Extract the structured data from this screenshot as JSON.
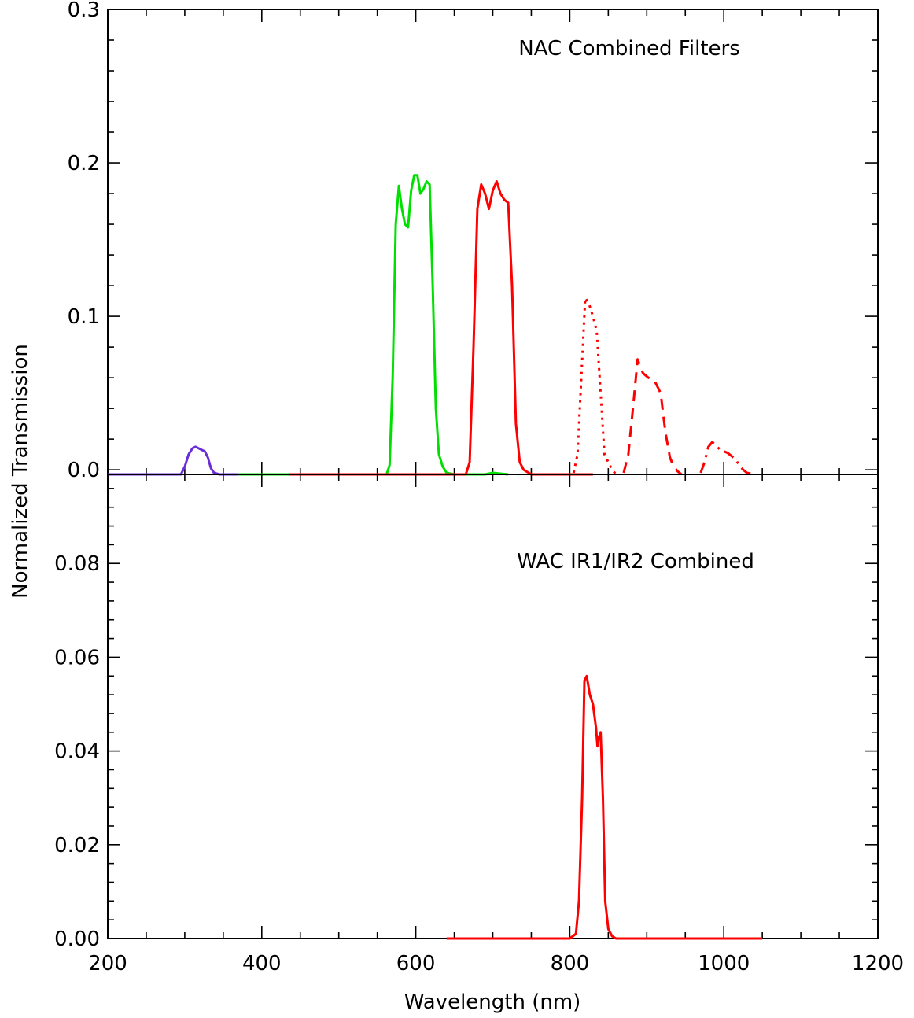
{
  "chart_data": [
    {
      "type": "line",
      "annotation": "NAC Combined Filters",
      "ylabel": "Normalized Transmission",
      "xlim": [
        200,
        1200
      ],
      "ylim": [
        -0.003,
        0.3
      ],
      "yticks": [
        0.0,
        0.1,
        0.2,
        0.3
      ],
      "ytick_labels": [
        "0.0",
        "0.1",
        "0.2",
        "0.3"
      ],
      "series": [
        {
          "color": "#6a2ed8",
          "style": "solid",
          "x": [
            200,
            295,
            300,
            305,
            310,
            314,
            318,
            322,
            326,
            330,
            334,
            338,
            345,
            370
          ],
          "y": [
            -0.003,
            -0.003,
            0.002,
            0.01,
            0.014,
            0.015,
            0.014,
            0.013,
            0.012,
            0.008,
            0.001,
            -0.002,
            -0.003,
            -0.003
          ]
        },
        {
          "color": "#00e000",
          "style": "solid",
          "x": [
            370,
            435,
            562,
            566,
            570,
            574,
            578,
            582,
            586,
            590,
            594,
            598,
            602,
            606,
            610,
            614,
            618,
            622,
            626,
            630,
            635,
            640,
            650,
            690,
            700,
            720
          ],
          "y": [
            -0.003,
            -0.003,
            -0.003,
            0.003,
            0.06,
            0.16,
            0.185,
            0.17,
            0.16,
            0.158,
            0.182,
            0.192,
            0.192,
            0.18,
            0.183,
            0.188,
            0.186,
            0.12,
            0.04,
            0.01,
            0.002,
            -0.002,
            -0.003,
            -0.003,
            -0.002,
            -0.003
          ]
        },
        {
          "color": "#ff0000",
          "style": "solid",
          "x": [
            435,
            600,
            640,
            665,
            670,
            675,
            680,
            685,
            690,
            695,
            700,
            705,
            710,
            715,
            720,
            725,
            730,
            735,
            740,
            750,
            780,
            830
          ],
          "y": [
            -0.003,
            -0.003,
            -0.003,
            -0.003,
            0.005,
            0.08,
            0.17,
            0.186,
            0.18,
            0.17,
            0.182,
            0.188,
            0.18,
            0.176,
            0.174,
            0.12,
            0.03,
            0.005,
            0.0,
            -0.003,
            -0.003,
            -0.003
          ]
        },
        {
          "color": "#ff0000",
          "style": "dotted",
          "x": [
            805,
            810,
            815,
            820,
            825,
            830,
            835,
            840,
            845,
            850,
            855,
            860
          ],
          "y": [
            -0.002,
            0.01,
            0.06,
            0.112,
            0.108,
            0.1,
            0.09,
            0.05,
            0.01,
            0.005,
            0.0,
            -0.003
          ]
        },
        {
          "color": "#ff0000",
          "style": "dashed",
          "x": [
            870,
            876,
            882,
            888,
            895,
            902,
            910,
            918,
            924,
            930,
            935,
            940,
            945
          ],
          "y": [
            -0.002,
            0.01,
            0.04,
            0.072,
            0.063,
            0.06,
            0.058,
            0.05,
            0.025,
            0.008,
            0.002,
            -0.001,
            -0.003
          ]
        },
        {
          "color": "#ff0000",
          "style": "dashdot",
          "x": [
            970,
            975,
            980,
            985,
            990,
            995,
            1000,
            1005,
            1010,
            1015,
            1020,
            1025,
            1030,
            1040
          ],
          "y": [
            -0.002,
            0.005,
            0.015,
            0.018,
            0.016,
            0.013,
            0.012,
            0.011,
            0.009,
            0.007,
            0.003,
            0.0,
            -0.002,
            -0.003
          ]
        }
      ]
    },
    {
      "type": "line",
      "annotation": "WAC IR1/IR2 Combined",
      "xlabel": "Wavelength (nm)",
      "xlim": [
        200,
        1200
      ],
      "xticks": [
        200,
        400,
        600,
        800,
        1000,
        1200
      ],
      "xtick_labels": [
        "200",
        "400",
        "600",
        "800",
        "1000",
        "1200"
      ],
      "ylim": [
        0.0,
        0.099
      ],
      "yticks": [
        0.0,
        0.02,
        0.04,
        0.06,
        0.08
      ],
      "ytick_labels": [
        "0.00",
        "0.02",
        "0.04",
        "0.06",
        "0.08"
      ],
      "series": [
        {
          "color": "#ff0000",
          "style": "solid",
          "x": [
            640,
            800,
            808,
            812,
            816,
            819,
            822,
            826,
            830,
            834,
            836,
            838,
            840,
            843,
            846,
            850,
            855,
            860,
            870,
            900,
            1050
          ],
          "y": [
            0.0,
            0.0,
            0.001,
            0.008,
            0.03,
            0.055,
            0.056,
            0.052,
            0.05,
            0.045,
            0.041,
            0.043,
            0.044,
            0.03,
            0.008,
            0.002,
            0.0005,
            0.0,
            0.0,
            0.0,
            0.0
          ]
        }
      ]
    }
  ]
}
